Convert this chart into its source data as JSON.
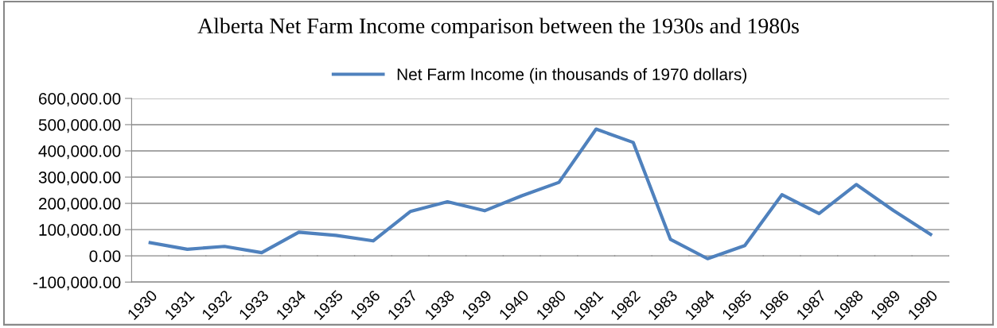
{
  "chart_data": {
    "type": "line",
    "title": "Alberta Net Farm Income comparison between the 1930s and 1980s",
    "categories": [
      "1930",
      "1931",
      "1932",
      "1933",
      "1934",
      "1935",
      "1936",
      "1937",
      "1938",
      "1939",
      "1940",
      "1980",
      "1981",
      "1982",
      "1983",
      "1984",
      "1985",
      "1986",
      "1987",
      "1988",
      "1989",
      "1990"
    ],
    "series": [
      {
        "name": "Net Farm Income (in thousands of 1970 dollars)",
        "color": "#4f81bd",
        "values": [
          50000,
          25000,
          36000,
          12000,
          90000,
          78000,
          57000,
          169000,
          206000,
          172000,
          229000,
          280000,
          483000,
          432000,
          63000,
          -11000,
          39000,
          233000,
          161000,
          272000,
          173000,
          82000
        ]
      }
    ],
    "ylim": [
      -100000,
      600000
    ],
    "yticks": [
      {
        "value": -100000,
        "label": "-100,000.00"
      },
      {
        "value": 0,
        "label": "0.00"
      },
      {
        "value": 100000,
        "label": "100,000.00"
      },
      {
        "value": 200000,
        "label": "200,000.00"
      },
      {
        "value": 300000,
        "label": "300,000.00"
      },
      {
        "value": 400000,
        "label": "400,000.00"
      },
      {
        "value": 500000,
        "label": "500,000.00"
      },
      {
        "value": 600000,
        "label": "600,000.00"
      }
    ],
    "grid": "y",
    "legend": "top",
    "marker": "none",
    "line_style": "solid"
  }
}
